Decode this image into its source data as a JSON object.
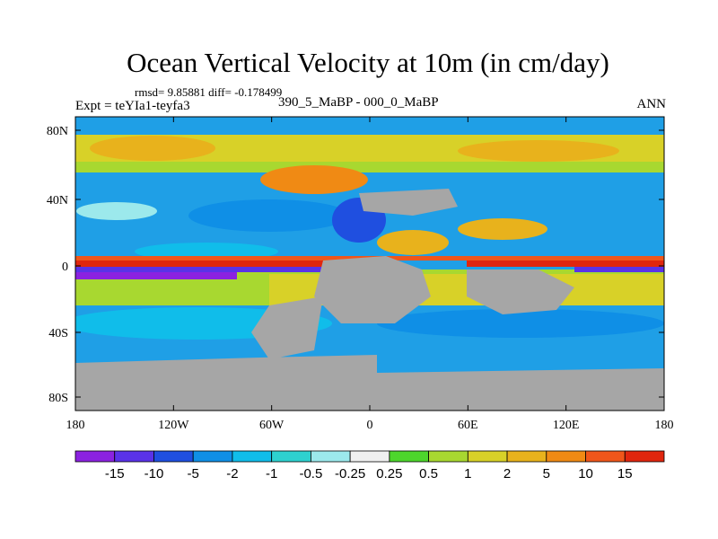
{
  "title": "Ocean Vertical Velocity at 10m (in cm/day)",
  "stats": "rmsd= 9.85881 diff= -0.178499",
  "expt": "Expt = teYIa1-teyfa3",
  "difference_label": "390_5_MaBP - 000_0_MaBP",
  "season": "ANN",
  "chart_data": {
    "type": "heatmap",
    "title": "Ocean Vertical Velocity at 10m (in cm/day)",
    "units": "cm/day",
    "x_ticks": [
      "180",
      "120W",
      "60W",
      "0",
      "60E",
      "120E",
      "180"
    ],
    "y_ticks": [
      "80N",
      "40N",
      "0",
      "40S",
      "80S"
    ],
    "x_range": [
      -180,
      180
    ],
    "y_range": [
      -90,
      90
    ],
    "colorbar": {
      "labels": [
        "-15",
        "-10",
        "-5",
        "-2",
        "-1",
        "-0.5",
        "-0.25",
        "0.25",
        "0.5",
        "1",
        "2",
        "5",
        "10",
        "15"
      ],
      "colors": [
        "#8b22e0",
        "#5a32e8",
        "#1f4fe0",
        "#0f8fe6",
        "#10bdea",
        "#2ed1cf",
        "#9ce9ec",
        "#f0f0f0",
        "#4dd62c",
        "#a8d830",
        "#d8d128",
        "#e8b21c",
        "#f08a14",
        "#f0561a",
        "#e0260e"
      ]
    },
    "land_color": "#a6a6a6"
  }
}
